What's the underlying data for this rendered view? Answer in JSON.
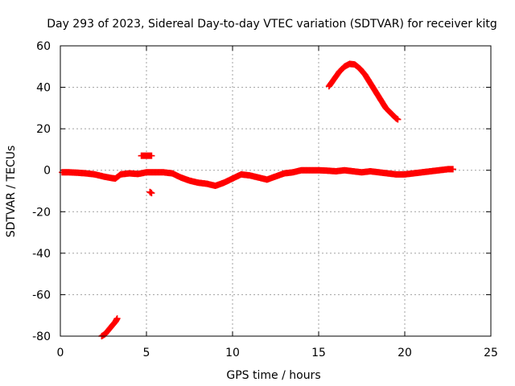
{
  "chart_data": {
    "type": "scatter",
    "title": "Day 293 of 2023, Sidereal Day-to-day VTEC variation (SDTVAR) for receiver kitg",
    "xlabel": "GPS time / hours",
    "ylabel": "SDTVAR / TECUs",
    "xlim": [
      0,
      25
    ],
    "ylim": [
      -80,
      60
    ],
    "xticks": [
      0,
      5,
      10,
      15,
      20,
      25
    ],
    "yticks": [
      -80,
      -60,
      -40,
      -20,
      0,
      20,
      40,
      60
    ],
    "grid": true,
    "marker": "+",
    "colors": {
      "series": "#ff0000",
      "grid": "#a0a0a0",
      "axis": "#000000"
    },
    "series": [
      {
        "name": "main-band",
        "x": [
          0.1,
          0.5,
          1.0,
          1.5,
          2.0,
          2.5,
          3.0,
          3.2,
          3.5,
          4.0,
          4.5,
          5.0,
          5.5,
          6.0,
          6.5,
          7.0,
          7.5,
          8.0,
          8.5,
          9.0,
          9.5,
          10.0,
          10.5,
          11.0,
          11.5,
          12.0,
          12.5,
          13.0,
          13.5,
          14.0,
          14.5,
          15.0,
          15.5,
          16.0,
          16.5,
          17.0,
          17.5,
          18.0,
          18.5,
          19.0,
          19.5,
          20.0,
          20.5,
          21.0,
          21.5,
          22.0,
          22.5,
          22.8
        ],
        "y": [
          -1.0,
          -1.0,
          -1.2,
          -1.5,
          -2.0,
          -3.0,
          -3.8,
          -4.0,
          -2.0,
          -1.5,
          -1.8,
          -1.0,
          -1.0,
          -1.0,
          -1.5,
          -3.5,
          -5.0,
          -6.0,
          -6.5,
          -7.5,
          -6.0,
          -4.0,
          -2.0,
          -2.5,
          -3.5,
          -4.5,
          -3.0,
          -1.5,
          -1.0,
          0.0,
          0.0,
          0.0,
          -0.2,
          -0.5,
          0.0,
          -0.5,
          -1.0,
          -0.5,
          -1.0,
          -1.5,
          -2.0,
          -2.0,
          -1.5,
          -1.0,
          -0.5,
          0.0,
          0.5,
          0.5
        ]
      },
      {
        "name": "arc",
        "x": [
          15.6,
          15.9,
          16.2,
          16.5,
          16.8,
          17.1,
          17.4,
          17.7,
          18.0,
          18.3,
          18.6,
          18.9,
          19.2,
          19.5,
          19.6
        ],
        "y": [
          40.5,
          44.0,
          47.5,
          50.0,
          51.3,
          51.0,
          49.0,
          46.0,
          42.0,
          38.0,
          34.0,
          30.0,
          27.5,
          25.0,
          24.5
        ]
      },
      {
        "name": "spike-positive",
        "x": [
          4.7,
          4.9,
          5.1,
          5.3
        ],
        "y": [
          7.0,
          7.0,
          7.0,
          7.0
        ]
      },
      {
        "name": "spike-negative",
        "x": [
          5.2,
          5.3
        ],
        "y": [
          -10.5,
          -11.0
        ]
      },
      {
        "name": "low-arc",
        "x": [
          2.4,
          2.6,
          2.8,
          3.0,
          3.2,
          3.3
        ],
        "y": [
          -80.0,
          -79.0,
          -77.0,
          -75.0,
          -73.0,
          -71.5
        ]
      }
    ]
  }
}
